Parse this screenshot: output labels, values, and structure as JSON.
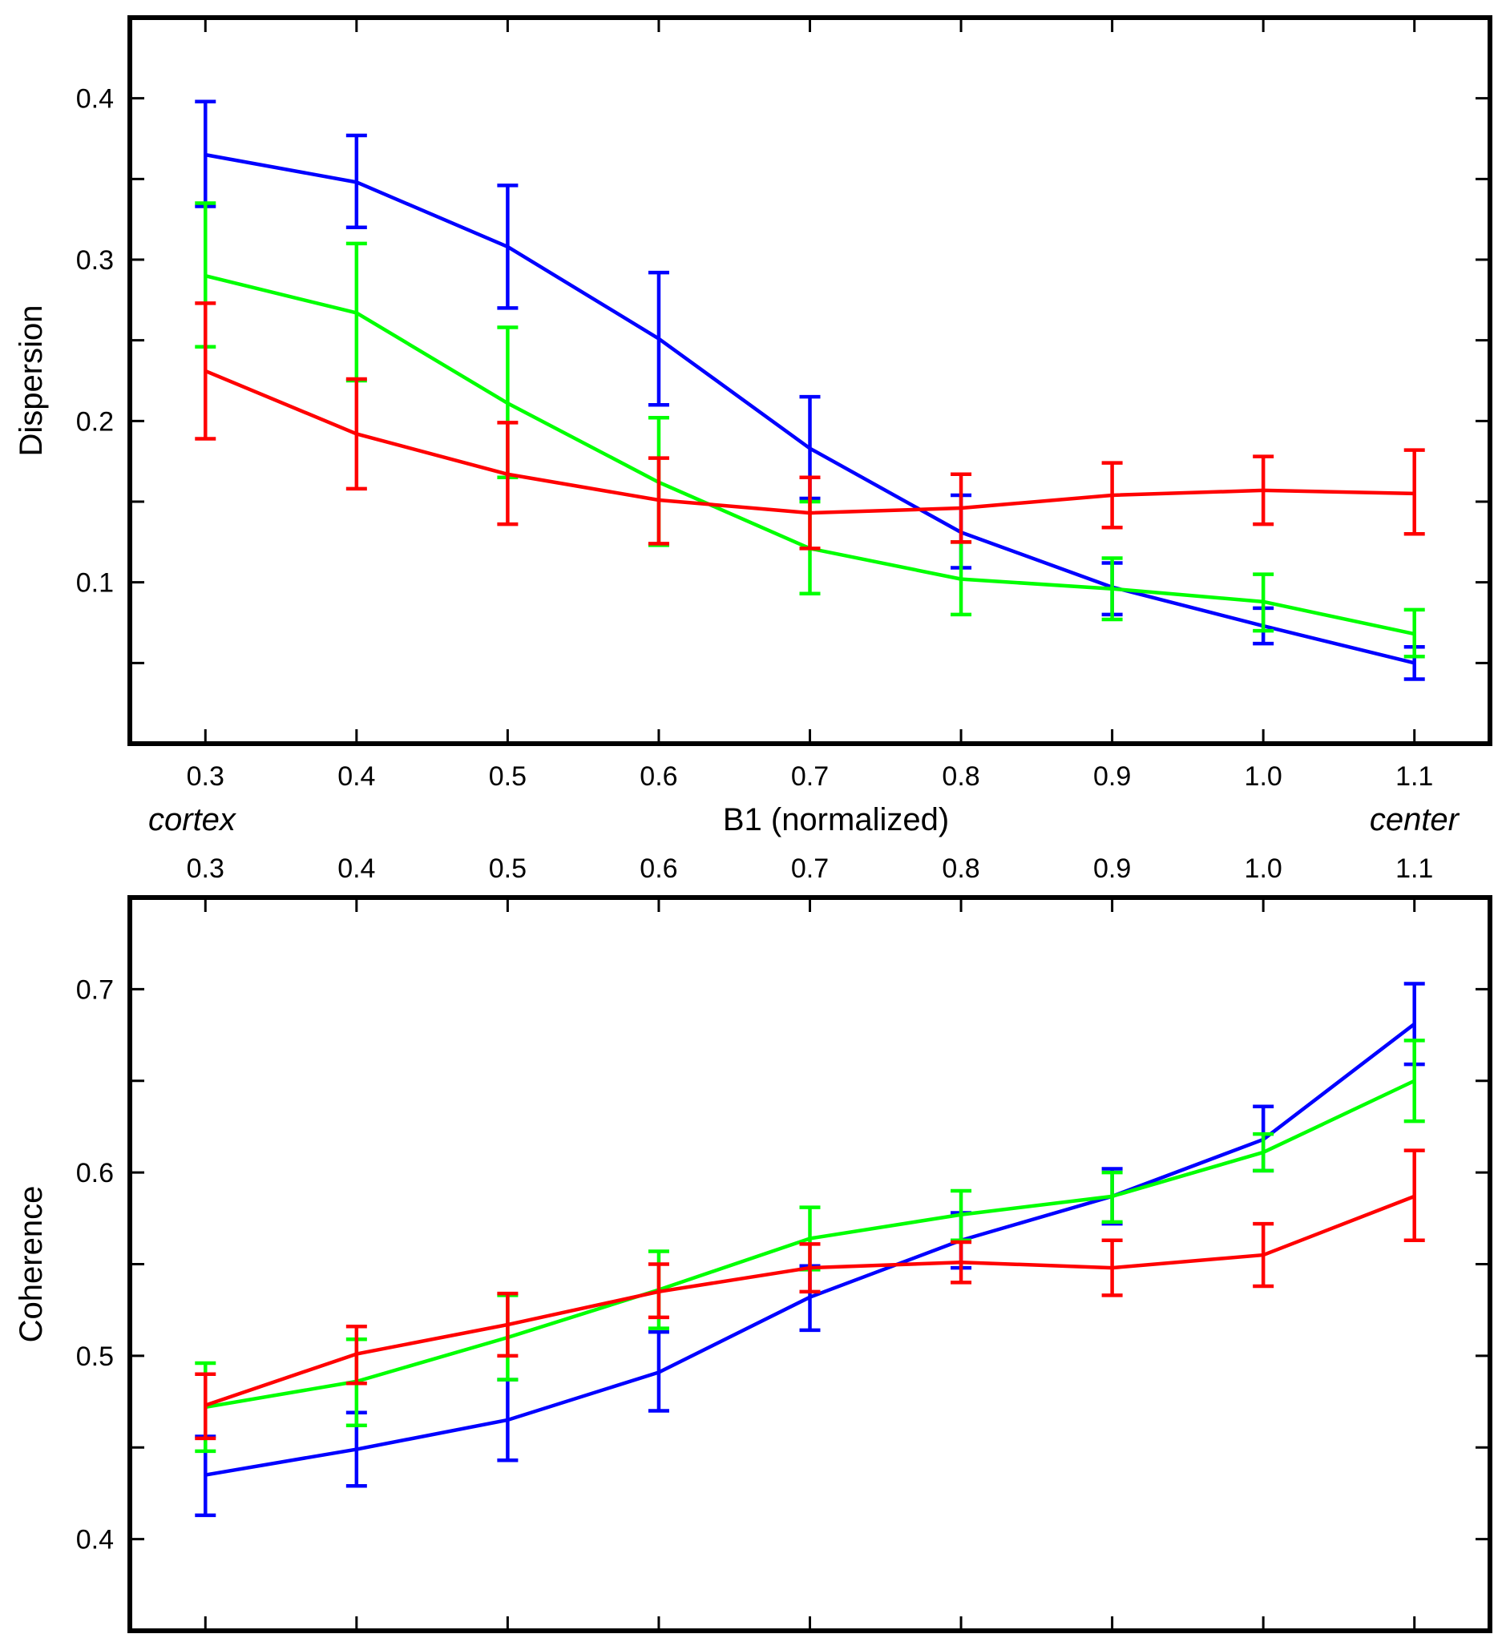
{
  "chart_data": [
    {
      "type": "line",
      "name": "dispersion",
      "ylabel": "Dispersion",
      "xlabel": "B1 (normalized)",
      "x": [
        0.3,
        0.4,
        0.5,
        0.6,
        0.7,
        0.8,
        0.9,
        1.0,
        1.1
      ],
      "x_tick_labels": [
        "0.3",
        "0.4",
        "0.5",
        "0.6",
        "0.7",
        "0.8",
        "0.9",
        "1.0",
        "1.1"
      ],
      "xlim": [
        0.25,
        1.15
      ],
      "ylim": [
        0,
        0.45
      ],
      "y_ticks": [
        0.05,
        0.1,
        0.15,
        0.2,
        0.25,
        0.3,
        0.35,
        0.4
      ],
      "y_tick_labels": [
        {
          "value": 0.1,
          "label": "0.1"
        },
        {
          "value": 0.2,
          "label": "0.2"
        },
        {
          "value": 0.3,
          "label": "0.3"
        },
        {
          "value": 0.4,
          "label": "0.4"
        }
      ],
      "series": [
        {
          "color": "#0000ff",
          "values": [
            0.365,
            0.348,
            0.308,
            0.251,
            0.183,
            0.131,
            0.097,
            0.073,
            0.05
          ],
          "err_low": [
            0.333,
            0.32,
            0.27,
            0.21,
            0.152,
            0.109,
            0.08,
            0.062,
            0.04
          ],
          "err_high": [
            0.398,
            0.377,
            0.346,
            0.292,
            0.215,
            0.154,
            0.112,
            0.084,
            0.06
          ]
        },
        {
          "color": "#00ff00",
          "values": [
            0.29,
            0.267,
            0.211,
            0.162,
            0.121,
            0.102,
            0.096,
            0.088,
            0.068
          ],
          "err_low": [
            0.246,
            0.225,
            0.165,
            0.123,
            0.093,
            0.08,
            0.077,
            0.07,
            0.054
          ],
          "err_high": [
            0.335,
            0.31,
            0.258,
            0.202,
            0.15,
            0.125,
            0.115,
            0.105,
            0.083
          ]
        },
        {
          "color": "#ff0000",
          "values": [
            0.231,
            0.192,
            0.167,
            0.151,
            0.143,
            0.146,
            0.154,
            0.157,
            0.155
          ],
          "err_low": [
            0.189,
            0.158,
            0.136,
            0.124,
            0.121,
            0.125,
            0.134,
            0.136,
            0.13
          ],
          "err_high": [
            0.273,
            0.226,
            0.199,
            0.177,
            0.165,
            0.167,
            0.174,
            0.178,
            0.182
          ]
        }
      ]
    },
    {
      "type": "line",
      "name": "coherence",
      "ylabel": "Coherence",
      "x": [
        0.3,
        0.4,
        0.5,
        0.6,
        0.7,
        0.8,
        0.9,
        1.0,
        1.1
      ],
      "x_tick_labels": [
        "0.3",
        "0.4",
        "0.5",
        "0.6",
        "0.7",
        "0.8",
        "0.9",
        "1.0",
        "1.1"
      ],
      "xlim": [
        0.25,
        1.15
      ],
      "ylim": [
        0.35,
        0.75
      ],
      "y_ticks": [
        0.4,
        0.45,
        0.5,
        0.55,
        0.6,
        0.65,
        0.7
      ],
      "y_tick_labels": [
        {
          "value": 0.4,
          "label": "0.4"
        },
        {
          "value": 0.5,
          "label": "0.5"
        },
        {
          "value": 0.6,
          "label": "0.6"
        },
        {
          "value": 0.7,
          "label": "0.7"
        }
      ],
      "series": [
        {
          "color": "#0000ff",
          "values": [
            0.435,
            0.449,
            0.465,
            0.491,
            0.532,
            0.563,
            0.587,
            0.618,
            0.681
          ],
          "err_low": [
            0.413,
            0.429,
            0.443,
            0.47,
            0.514,
            0.548,
            0.572,
            0.601,
            0.659
          ],
          "err_high": [
            0.456,
            0.469,
            0.487,
            0.513,
            0.549,
            0.578,
            0.602,
            0.636,
            0.703
          ]
        },
        {
          "color": "#00ff00",
          "values": [
            0.472,
            0.486,
            0.51,
            0.536,
            0.564,
            0.577,
            0.587,
            0.611,
            0.65
          ],
          "err_low": [
            0.448,
            0.462,
            0.487,
            0.515,
            0.547,
            0.563,
            0.573,
            0.601,
            0.628
          ],
          "err_high": [
            0.496,
            0.509,
            0.533,
            0.557,
            0.581,
            0.59,
            0.6,
            0.621,
            0.672
          ]
        },
        {
          "color": "#ff0000",
          "values": [
            0.473,
            0.501,
            0.517,
            0.535,
            0.548,
            0.551,
            0.548,
            0.555,
            0.587
          ],
          "err_low": [
            0.455,
            0.485,
            0.5,
            0.521,
            0.535,
            0.54,
            0.533,
            0.538,
            0.563
          ],
          "err_high": [
            0.49,
            0.516,
            0.534,
            0.55,
            0.561,
            0.562,
            0.563,
            0.572,
            0.612
          ]
        }
      ]
    }
  ],
  "annotations": {
    "left_end": "cortex",
    "right_end": "center"
  }
}
